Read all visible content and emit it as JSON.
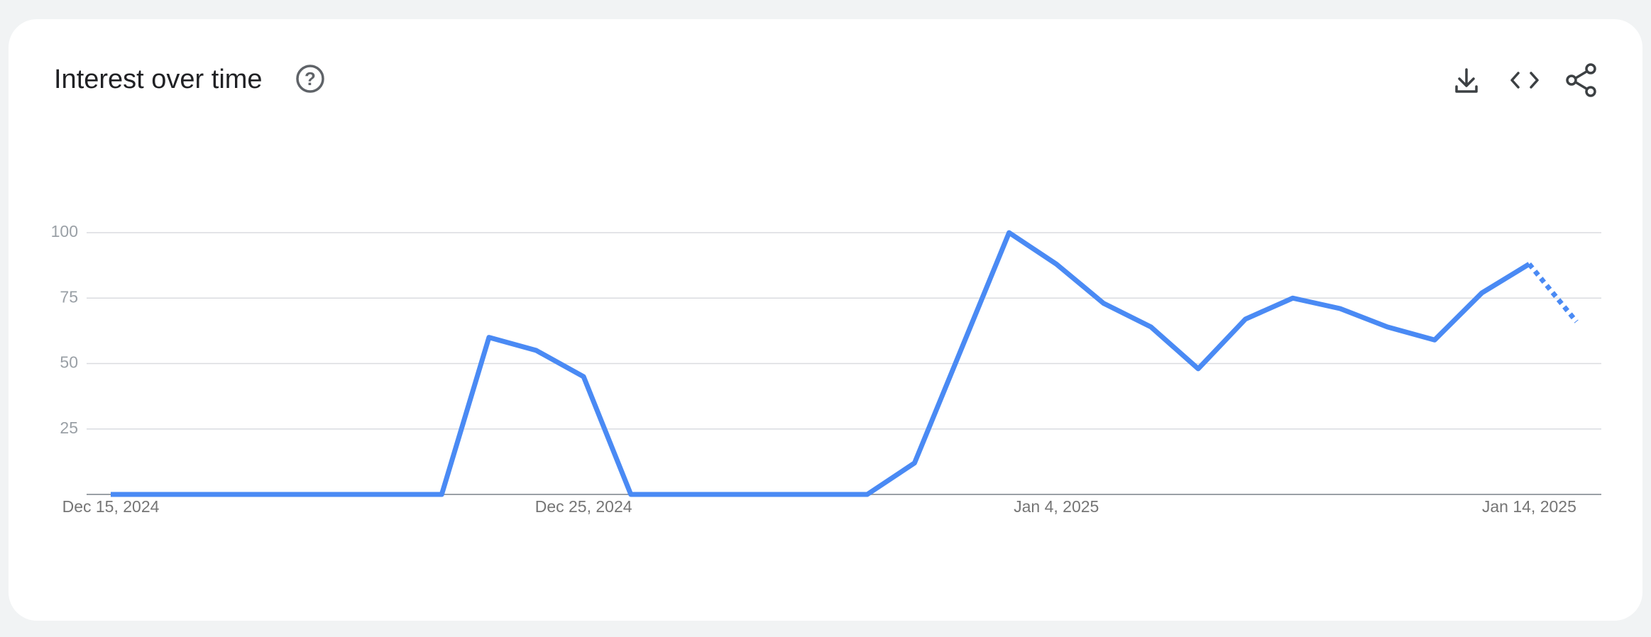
{
  "header": {
    "title": "Interest over time"
  },
  "chart_data": {
    "type": "line",
    "categories": [
      "Dec 15, 2024",
      null,
      null,
      null,
      null,
      null,
      null,
      null,
      null,
      null,
      "Dec 25, 2024",
      null,
      null,
      null,
      null,
      null,
      null,
      null,
      null,
      null,
      "Jan 4, 2025",
      null,
      null,
      null,
      null,
      null,
      null,
      null,
      null,
      null,
      "Jan 14, 2025",
      null
    ],
    "series": [
      {
        "color": "#4a8af4",
        "values": [
          0,
          0,
          0,
          0,
          0,
          0,
          0,
          0,
          60,
          55,
          45,
          0,
          0,
          0,
          0,
          0,
          0,
          12,
          56,
          100,
          88,
          73,
          64,
          48,
          67,
          75,
          71,
          64,
          59,
          77,
          88,
          66
        ]
      }
    ],
    "ylim": [
      0,
      100
    ],
    "yticks": [
      25,
      50,
      75,
      100
    ],
    "grid": true,
    "partial_last": true
  }
}
